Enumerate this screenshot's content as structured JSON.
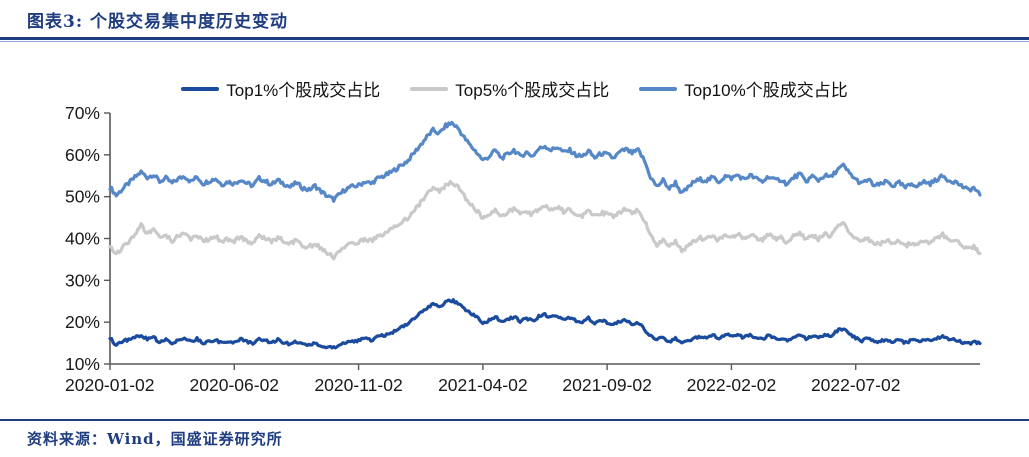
{
  "header": {
    "title": "图表3: 个股交易集中度历史变动"
  },
  "footer": {
    "text": "资料来源：Wind，国盛证券研究所"
  },
  "colors": {
    "accent_navy": "#1f3d80",
    "rule_light": "#8faadc",
    "axis_line": "#595959",
    "tick_label": "#1a1a1a",
    "top1_line": "#1a4b9e",
    "top5_line": "#c9c9c9",
    "top10_line": "#5688c7"
  },
  "legend": {
    "items": [
      {
        "label": "Top1%个股成交占比",
        "color_key": "top1_line"
      },
      {
        "label": "Top5%个股成交占比",
        "color_key": "top5_line"
      },
      {
        "label": "Top10%个股成交占比",
        "color_key": "top10_line"
      }
    ]
  },
  "chart_data": {
    "type": "line",
    "title": "个股交易集中度历史变动",
    "xlabel": "",
    "ylabel": "",
    "ylim": [
      10,
      70
    ],
    "y_ticks": [
      70,
      60,
      50,
      40,
      30,
      20,
      10
    ],
    "y_unit": "%",
    "grid": false,
    "legend_position": "top",
    "x_start": "2020-01-02",
    "x_end": "2022-12-02",
    "x_tick_labels": [
      "2020-01-02",
      "2020-06-02",
      "2020-11-02",
      "2021-04-02",
      "2021-09-02",
      "2022-02-02",
      "2022-07-02"
    ],
    "x_tick_indices": [
      0,
      20,
      40,
      60,
      80,
      100,
      120
    ],
    "series": [
      {
        "name": "Top10%个股成交占比",
        "color": "#5688c7",
        "values": [
          52.3,
          50.3,
          51.8,
          53.2,
          54.6,
          55.9,
          54.6,
          55.3,
          53.6,
          54.4,
          53.2,
          54.3,
          54.9,
          53.6,
          54.7,
          53.1,
          53.8,
          54.3,
          52.9,
          53.6,
          53.1,
          54.1,
          53.2,
          52.6,
          54.4,
          53.7,
          52.9,
          53.9,
          53.1,
          52.3,
          53.3,
          52.1,
          51.6,
          52.6,
          51.2,
          50.1,
          49.3,
          50.6,
          51.9,
          52.4,
          52.7,
          53.6,
          53.1,
          54.3,
          54.9,
          55.6,
          56.6,
          57.6,
          58.7,
          60.6,
          62.4,
          64.3,
          65.9,
          65.1,
          66.9,
          67.6,
          66.4,
          64.1,
          62.2,
          60.6,
          58.7,
          59.6,
          61.1,
          59.2,
          60.1,
          61.2,
          59.6,
          60.6,
          59.7,
          61.4,
          62.1,
          61.1,
          61.9,
          60.6,
          61.1,
          59.9,
          59.6,
          60.9,
          59.3,
          60.3,
          60.1,
          59.2,
          60.6,
          61.3,
          60.4,
          61.1,
          58.6,
          54.6,
          52.4,
          53.9,
          51.9,
          53.4,
          50.7,
          52.1,
          53.6,
          54.1,
          53.9,
          54.6,
          53.6,
          54.9,
          54.4,
          55.2,
          54.1,
          55.1,
          54.3,
          53.6,
          54.9,
          53.9,
          54.1,
          52.9,
          54.6,
          55.4,
          53.6,
          54.9,
          53.9,
          55.1,
          54.6,
          56.4,
          57.4,
          55.6,
          54.1,
          53.1,
          54.1,
          52.6,
          52.9,
          53.6,
          52.6,
          53.3,
          52.1,
          53.1,
          52.6,
          53.6,
          53.1,
          54.1,
          54.9,
          53.9,
          53.6,
          52.6,
          51.6,
          52.1,
          50.4
        ]
      },
      {
        "name": "Top5%个股成交占比",
        "color": "#c9c9c9",
        "values": [
          38.3,
          36.3,
          37.8,
          39.2,
          40.7,
          43.1,
          41.3,
          42.2,
          39.9,
          40.8,
          39.5,
          40.6,
          41.2,
          39.8,
          41.0,
          39.3,
          39.9,
          40.6,
          39.1,
          39.9,
          39.4,
          40.4,
          39.5,
          38.9,
          40.7,
          40.0,
          39.2,
          40.2,
          39.4,
          38.6,
          39.6,
          38.4,
          37.9,
          38.9,
          37.5,
          36.4,
          35.6,
          36.9,
          38.2,
          38.7,
          39.0,
          39.9,
          39.4,
          40.6,
          41.2,
          41.9,
          42.9,
          44.0,
          45.1,
          46.9,
          48.7,
          50.5,
          52.0,
          51.2,
          52.8,
          53.4,
          52.3,
          50.1,
          48.2,
          46.7,
          44.9,
          45.7,
          47.1,
          45.3,
          46.1,
          47.1,
          45.6,
          46.5,
          45.7,
          47.2,
          47.8,
          46.9,
          47.6,
          46.4,
          46.9,
          45.8,
          45.5,
          46.7,
          45.2,
          46.1,
          45.9,
          45.1,
          46.4,
          47.0,
          46.1,
          46.8,
          44.3,
          40.6,
          38.4,
          39.9,
          37.9,
          39.4,
          36.9,
          38.2,
          39.6,
          40.1,
          39.9,
          40.6,
          39.6,
          40.9,
          40.4,
          41.2,
          40.1,
          41.1,
          40.3,
          39.6,
          40.9,
          39.9,
          40.1,
          38.9,
          40.6,
          41.4,
          39.6,
          40.9,
          39.9,
          41.1,
          40.6,
          42.4,
          44.2,
          41.6,
          40.1,
          39.1,
          40.1,
          38.6,
          38.9,
          39.6,
          38.6,
          39.3,
          38.1,
          39.1,
          38.6,
          39.6,
          39.1,
          40.1,
          40.9,
          39.9,
          39.6,
          38.6,
          37.6,
          38.1,
          36.4
        ]
      },
      {
        "name": "Top1%个股成交占比",
        "color": "#1a4b9e",
        "values": [
          16.3,
          14.4,
          15.4,
          15.9,
          16.4,
          16.9,
          15.9,
          16.4,
          15.2,
          15.8,
          15.1,
          15.7,
          16.1,
          15.3,
          16.0,
          15.0,
          15.4,
          15.9,
          14.9,
          15.4,
          15.2,
          15.9,
          15.3,
          14.9,
          16.1,
          15.6,
          15.1,
          15.8,
          15.2,
          14.7,
          15.4,
          14.6,
          14.4,
          15.1,
          14.2,
          13.9,
          13.9,
          14.6,
          15.2,
          15.4,
          15.6,
          16.1,
          15.7,
          16.4,
          16.8,
          17.3,
          18.0,
          18.8,
          19.6,
          20.9,
          22.1,
          23.3,
          24.3,
          23.7,
          24.8,
          25.2,
          24.6,
          23.3,
          22.1,
          21.2,
          19.9,
          20.4,
          21.3,
          20.1,
          20.6,
          21.3,
          20.2,
          20.9,
          20.3,
          21.4,
          21.8,
          21.1,
          21.6,
          20.7,
          21.1,
          20.3,
          20.1,
          21.0,
          19.9,
          20.6,
          19.9,
          19.3,
          20.1,
          20.5,
          19.6,
          19.9,
          18.3,
          16.7,
          15.7,
          16.5,
          15.3,
          16.2,
          14.8,
          15.5,
          16.3,
          16.6,
          16.4,
          16.9,
          16.2,
          17.0,
          16.7,
          17.1,
          16.3,
          16.9,
          16.4,
          15.9,
          16.8,
          16.1,
          16.2,
          15.4,
          16.6,
          17.1,
          15.9,
          16.8,
          16.1,
          16.9,
          16.6,
          17.9,
          18.6,
          17.1,
          16.1,
          15.6,
          16.1,
          15.2,
          15.4,
          15.9,
          15.3,
          15.7,
          15.1,
          15.7,
          15.4,
          15.9,
          15.6,
          16.1,
          16.5,
          15.9,
          15.8,
          15.2,
          14.8,
          15.3,
          14.9
        ]
      }
    ]
  }
}
